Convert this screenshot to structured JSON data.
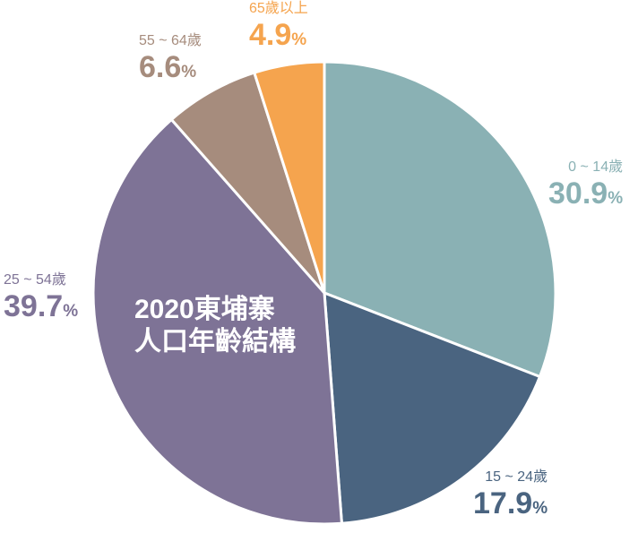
{
  "chart_data": {
    "type": "pie",
    "title": "2020東埔寨",
    "subtitle": "人口年齡結構",
    "categories": [
      "0 ~ 14歲",
      "15 ~ 24歲",
      "25 ~ 54歲",
      "55 ~ 64歲",
      "65歲以上"
    ],
    "values": [
      30.9,
      17.9,
      39.7,
      6.6,
      4.9
    ],
    "value_labels": [
      "30.9",
      "17.9",
      "39.7",
      "6.6",
      "4.9"
    ],
    "unit": "%",
    "colors": [
      "#8AB1B4",
      "#4A6480",
      "#7E7396",
      "#A68C7D",
      "#F5A44E"
    ],
    "label_colors": [
      "#8AB1B4",
      "#4A6480",
      "#7E7396",
      "#A68C7D",
      "#F5A44E"
    ],
    "start_angle": "12 o'clock",
    "direction": "clockwise",
    "legend": "none"
  }
}
